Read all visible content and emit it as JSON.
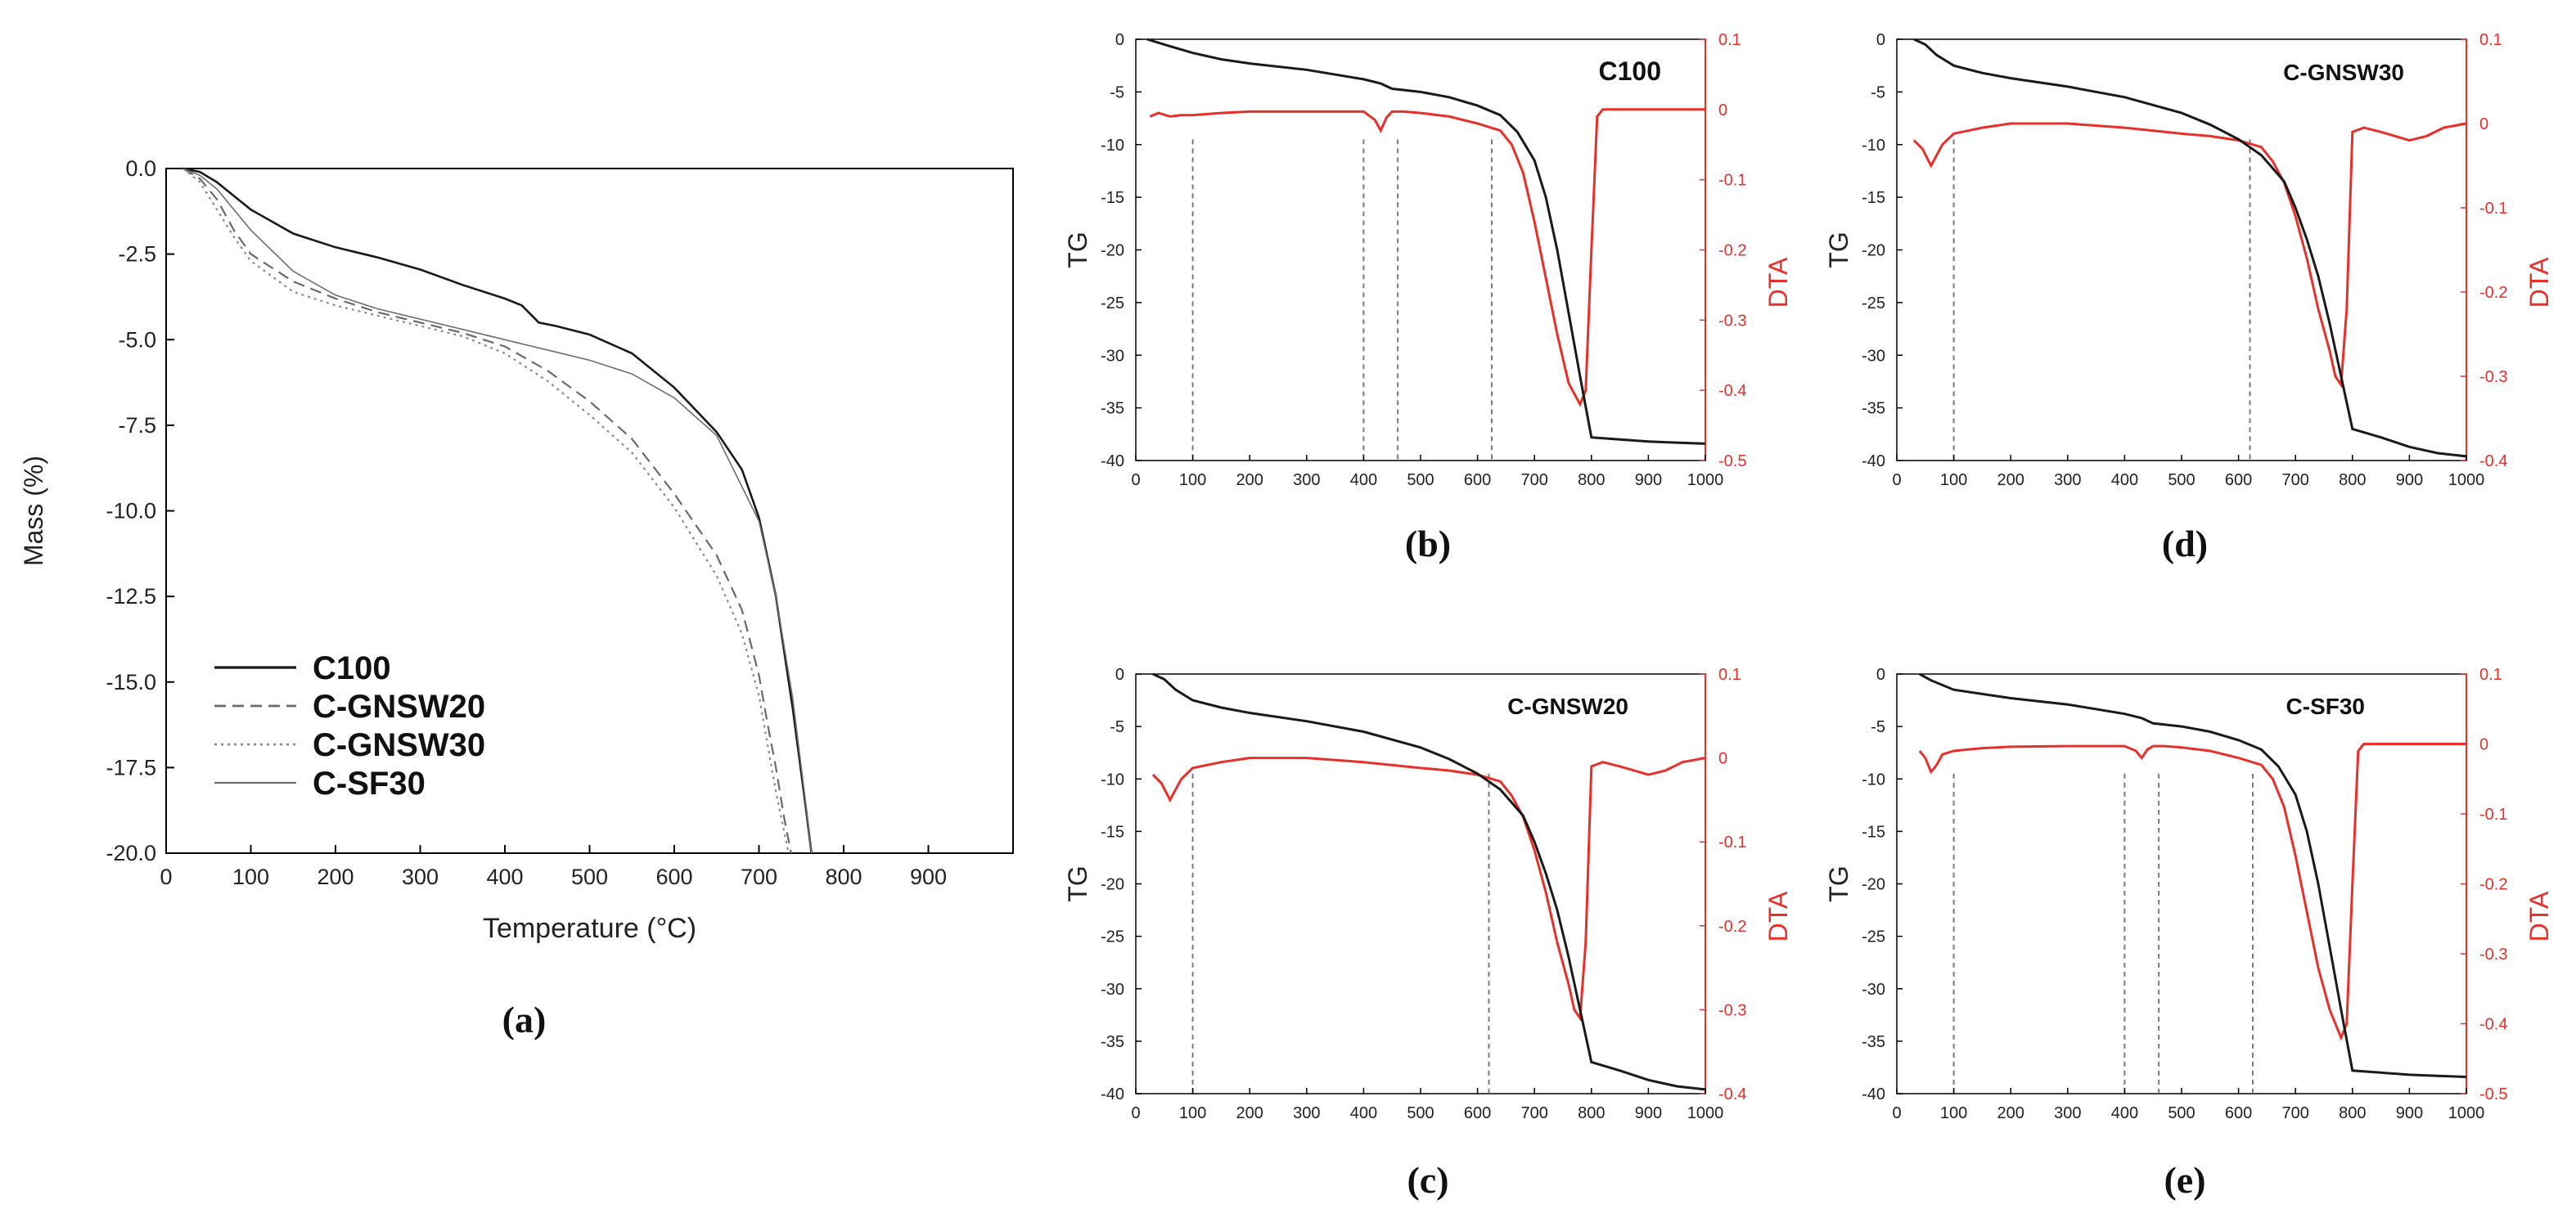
{
  "colors": {
    "tg": "#1a1a1a",
    "dta": "#e8302a",
    "axis": "#000000",
    "guide": "#7a7a7a"
  },
  "chart_data": [
    {
      "panel": "a",
      "type": "line",
      "caption": "(a)",
      "xlabel": "Temperature (°C)",
      "ylabel": "Mass (%)",
      "xlim": [
        0,
        1000
      ],
      "ylim": [
        -20,
        0
      ],
      "xticks": [
        "0",
        "100",
        "200",
        "300",
        "400",
        "500",
        "600",
        "700",
        "800",
        "900"
      ],
      "yticks": [
        "0.0",
        "-2.5",
        "-5.0",
        "-7.5",
        "-10.0",
        "-12.5",
        "-15.0",
        "-17.5",
        "-20.0"
      ],
      "legend_position": "bottom-left",
      "series": [
        {
          "name": "C100",
          "style": "solid",
          "width": 2.6,
          "color": "#1a1a1a",
          "x": [
            20,
            40,
            60,
            80,
            100,
            150,
            200,
            250,
            300,
            350,
            400,
            420,
            440,
            460,
            500,
            550,
            600,
            650,
            680,
            700,
            720,
            740,
            755,
            762
          ],
          "y": [
            0,
            -0.1,
            -0.4,
            -0.8,
            -1.2,
            -1.9,
            -2.3,
            -2.6,
            -2.95,
            -3.4,
            -3.8,
            -4.0,
            -4.5,
            -4.6,
            -4.85,
            -5.4,
            -6.4,
            -7.7,
            -8.8,
            -10.2,
            -12.5,
            -15.8,
            -18.6,
            -20.0
          ]
        },
        {
          "name": "C-GNSW20",
          "style": "dashed",
          "width": 2.2,
          "color": "#6a6a6a",
          "x": [
            20,
            40,
            60,
            80,
            100,
            150,
            200,
            250,
            300,
            350,
            400,
            450,
            500,
            550,
            600,
            650,
            680,
            700,
            710,
            720,
            730,
            738
          ],
          "y": [
            0,
            -0.3,
            -0.9,
            -1.8,
            -2.5,
            -3.3,
            -3.8,
            -4.2,
            -4.5,
            -4.8,
            -5.2,
            -5.9,
            -6.8,
            -7.9,
            -9.5,
            -11.3,
            -12.9,
            -14.8,
            -16.2,
            -17.5,
            -19.0,
            -20.0
          ]
        },
        {
          "name": "C-GNSW30",
          "style": "dotted",
          "width": 2.2,
          "color": "#8a8a8a",
          "x": [
            20,
            40,
            60,
            80,
            100,
            150,
            200,
            250,
            300,
            350,
            400,
            450,
            500,
            550,
            600,
            650,
            680,
            700,
            710,
            720,
            730,
            735
          ],
          "y": [
            0,
            -0.4,
            -1.2,
            -2.0,
            -2.7,
            -3.6,
            -4.0,
            -4.3,
            -4.6,
            -4.9,
            -5.4,
            -6.2,
            -7.2,
            -8.3,
            -9.9,
            -11.9,
            -13.6,
            -15.4,
            -16.8,
            -18.2,
            -19.4,
            -20.0
          ]
        },
        {
          "name": "C-SF30",
          "style": "solid",
          "width": 1.6,
          "color": "#6e6e6e",
          "x": [
            20,
            40,
            60,
            80,
            100,
            150,
            200,
            250,
            300,
            350,
            400,
            450,
            500,
            550,
            600,
            650,
            700,
            720,
            740,
            755,
            762
          ],
          "y": [
            0,
            -0.2,
            -0.6,
            -1.2,
            -1.8,
            -3.0,
            -3.7,
            -4.1,
            -4.4,
            -4.7,
            -5.0,
            -5.3,
            -5.6,
            -6.0,
            -6.7,
            -7.8,
            -10.3,
            -12.5,
            -15.5,
            -18.5,
            -20.0
          ]
        }
      ]
    },
    {
      "panel": "b",
      "type": "line",
      "caption": "(b)",
      "label": "C100",
      "xlabel": "",
      "ylabel_left": "TG",
      "ylabel_right": "DTA",
      "xlim": [
        0,
        1000
      ],
      "ylim_left": [
        -40,
        0
      ],
      "ylim_right": [
        -0.5,
        0.1
      ],
      "xticks": [
        "0",
        "100",
        "200",
        "300",
        "400",
        "500",
        "600",
        "700",
        "800",
        "900",
        "1000"
      ],
      "yticks_left": [
        "0",
        "-5",
        "-10",
        "-15",
        "-20",
        "-25",
        "-30",
        "-35",
        "-40"
      ],
      "yticks_right": [
        "0.1",
        "0",
        "-0.1",
        "-0.2",
        "-0.3",
        "-0.4",
        "-0.5"
      ],
      "guide_lines_x": [
        100,
        400,
        460,
        625
      ],
      "tg": {
        "x": [
          20,
          50,
          100,
          150,
          200,
          300,
          400,
          430,
          450,
          500,
          550,
          600,
          640,
          670,
          700,
          720,
          740,
          760,
          780,
          800,
          850,
          900,
          950,
          1000
        ],
        "y": [
          0,
          -0.5,
          -1.3,
          -1.9,
          -2.3,
          -2.9,
          -3.8,
          -4.2,
          -4.7,
          -5.0,
          -5.5,
          -6.3,
          -7.2,
          -8.8,
          -11.5,
          -15,
          -20,
          -26,
          -32,
          -37.8,
          -38,
          -38.2,
          -38.3,
          -38.4
        ]
      },
      "dta": {
        "x": [
          25,
          40,
          60,
          80,
          100,
          150,
          200,
          300,
          400,
          420,
          430,
          440,
          450,
          470,
          500,
          550,
          600,
          640,
          660,
          680,
          700,
          720,
          740,
          760,
          780,
          790,
          800,
          810,
          820,
          850,
          900,
          1000
        ],
        "y": [
          -0.01,
          -0.005,
          -0.01,
          -0.008,
          -0.008,
          -0.005,
          -0.003,
          -0.003,
          -0.003,
          -0.015,
          -0.03,
          -0.012,
          -0.003,
          -0.003,
          -0.005,
          -0.01,
          -0.02,
          -0.03,
          -0.05,
          -0.09,
          -0.16,
          -0.24,
          -0.32,
          -0.39,
          -0.42,
          -0.4,
          -0.2,
          -0.01,
          0,
          0,
          0,
          0
        ]
      }
    },
    {
      "panel": "d",
      "type": "line",
      "caption": "(d)",
      "label": "C-GNSW30",
      "xlabel": "",
      "ylabel_left": "TG",
      "ylabel_right": "DTA",
      "xlim": [
        0,
        1000
      ],
      "ylim_left": [
        -40,
        0
      ],
      "ylim_right": [
        -0.4,
        0.1
      ],
      "xticks": [
        "0",
        "100",
        "200",
        "300",
        "400",
        "500",
        "600",
        "700",
        "800",
        "900",
        "1000"
      ],
      "yticks_left": [
        "0",
        "-5",
        "-10",
        "-15",
        "-20",
        "-25",
        "-30",
        "-35",
        "-40"
      ],
      "yticks_right": [
        "0.1",
        "0",
        "-0.1",
        "-0.2",
        "-0.3",
        "-0.4"
      ],
      "guide_lines_x": [
        100,
        620
      ],
      "tg": {
        "x": [
          30,
          50,
          70,
          100,
          150,
          200,
          300,
          400,
          500,
          550,
          600,
          640,
          680,
          700,
          720,
          740,
          760,
          780,
          800,
          850,
          900,
          950,
          1000
        ],
        "y": [
          0,
          -0.5,
          -1.5,
          -2.5,
          -3.2,
          -3.7,
          -4.5,
          -5.5,
          -7,
          -8.1,
          -9.5,
          -11,
          -13.5,
          -16,
          -19,
          -22.5,
          -27,
          -32,
          -37,
          -37.8,
          -38.7,
          -39.3,
          -39.6
        ]
      },
      "dta": {
        "x": [
          30,
          45,
          60,
          80,
          100,
          150,
          200,
          300,
          400,
          500,
          550,
          600,
          640,
          660,
          680,
          700,
          720,
          740,
          760,
          770,
          780,
          790,
          800,
          820,
          850,
          900,
          930,
          960,
          1000
        ],
        "y": [
          -0.02,
          -0.03,
          -0.05,
          -0.025,
          -0.012,
          -0.005,
          0,
          0,
          -0.005,
          -0.012,
          -0.015,
          -0.02,
          -0.028,
          -0.045,
          -0.07,
          -0.11,
          -0.16,
          -0.22,
          -0.27,
          -0.3,
          -0.31,
          -0.22,
          -0.01,
          -0.005,
          -0.01,
          -0.02,
          -0.015,
          -0.005,
          0
        ]
      }
    },
    {
      "panel": "c",
      "type": "line",
      "caption": "(c)",
      "label": "C-GNSW20",
      "xlabel": "",
      "ylabel_left": "TG",
      "ylabel_right": "DTA",
      "xlim": [
        0,
        1000
      ],
      "ylim_left": [
        -40,
        0
      ],
      "ylim_right": [
        -0.4,
        0.1
      ],
      "xticks": [
        "0",
        "100",
        "200",
        "300",
        "400",
        "500",
        "600",
        "700",
        "800",
        "900",
        "1000"
      ],
      "yticks_left": [
        "0",
        "-5",
        "-10",
        "-15",
        "-20",
        "-25",
        "-30",
        "-35",
        "-40"
      ],
      "yticks_right": [
        "0.1",
        "0",
        "-0.1",
        "-0.2",
        "-0.3",
        "-0.4"
      ],
      "guide_lines_x": [
        100,
        620
      ],
      "tg": {
        "x": [
          30,
          50,
          70,
          100,
          150,
          200,
          300,
          400,
          500,
          550,
          600,
          640,
          680,
          700,
          720,
          740,
          760,
          780,
          800,
          850,
          900,
          950,
          1000
        ],
        "y": [
          0,
          -0.5,
          -1.5,
          -2.5,
          -3.2,
          -3.7,
          -4.5,
          -5.5,
          -7,
          -8.1,
          -9.5,
          -11,
          -13.5,
          -16,
          -19,
          -22.5,
          -27,
          -32,
          -37,
          -37.8,
          -38.7,
          -39.3,
          -39.6
        ]
      },
      "dta": {
        "x": [
          30,
          45,
          60,
          80,
          100,
          150,
          200,
          300,
          400,
          500,
          550,
          600,
          640,
          660,
          680,
          700,
          720,
          740,
          760,
          770,
          780,
          790,
          800,
          820,
          850,
          900,
          930,
          960,
          1000
        ],
        "y": [
          -0.02,
          -0.03,
          -0.05,
          -0.025,
          -0.012,
          -0.005,
          0,
          0,
          -0.005,
          -0.012,
          -0.015,
          -0.02,
          -0.028,
          -0.045,
          -0.07,
          -0.11,
          -0.16,
          -0.22,
          -0.27,
          -0.3,
          -0.31,
          -0.22,
          -0.01,
          -0.005,
          -0.01,
          -0.02,
          -0.015,
          -0.005,
          0
        ]
      }
    },
    {
      "panel": "e",
      "type": "line",
      "caption": "(e)",
      "label": "C-SF30",
      "xlabel": "",
      "ylabel_left": "TG",
      "ylabel_right": "DTA",
      "xlim": [
        0,
        1000
      ],
      "ylim_left": [
        -40,
        0
      ],
      "ylim_right": [
        -0.5,
        0.1
      ],
      "xticks": [
        "0",
        "100",
        "200",
        "300",
        "400",
        "500",
        "600",
        "700",
        "800",
        "900",
        "1000"
      ],
      "yticks_left": [
        "0",
        "-5",
        "-10",
        "-15",
        "-20",
        "-25",
        "-30",
        "-35",
        "-40"
      ],
      "yticks_right": [
        "0.1",
        "0",
        "-0.1",
        "-0.2",
        "-0.3",
        "-0.4",
        "-0.5"
      ],
      "guide_lines_x": [
        100,
        400,
        460,
        625
      ],
      "tg": {
        "x": [
          40,
          60,
          100,
          150,
          200,
          300,
          400,
          430,
          450,
          500,
          550,
          600,
          640,
          670,
          700,
          720,
          740,
          760,
          780,
          800,
          850,
          900,
          950,
          1000
        ],
        "y": [
          0,
          -0.6,
          -1.5,
          -1.9,
          -2.3,
          -2.9,
          -3.8,
          -4.2,
          -4.7,
          -5.0,
          -5.5,
          -6.3,
          -7.2,
          -8.8,
          -11.5,
          -15,
          -20,
          -26,
          -32,
          -37.8,
          -38,
          -38.2,
          -38.3,
          -38.4
        ]
      },
      "dta": {
        "x": [
          40,
          50,
          60,
          70,
          80,
          100,
          150,
          200,
          300,
          400,
          420,
          430,
          440,
          450,
          470,
          500,
          550,
          600,
          640,
          660,
          680,
          700,
          720,
          740,
          760,
          780,
          790,
          800,
          810,
          820,
          850,
          900,
          1000
        ],
        "y": [
          -0.01,
          -0.02,
          -0.04,
          -0.03,
          -0.015,
          -0.01,
          -0.006,
          -0.004,
          -0.003,
          -0.003,
          -0.01,
          -0.02,
          -0.008,
          -0.003,
          -0.003,
          -0.005,
          -0.01,
          -0.02,
          -0.03,
          -0.05,
          -0.09,
          -0.16,
          -0.24,
          -0.32,
          -0.38,
          -0.42,
          -0.4,
          -0.2,
          -0.01,
          0,
          0,
          0,
          0
        ]
      }
    }
  ]
}
